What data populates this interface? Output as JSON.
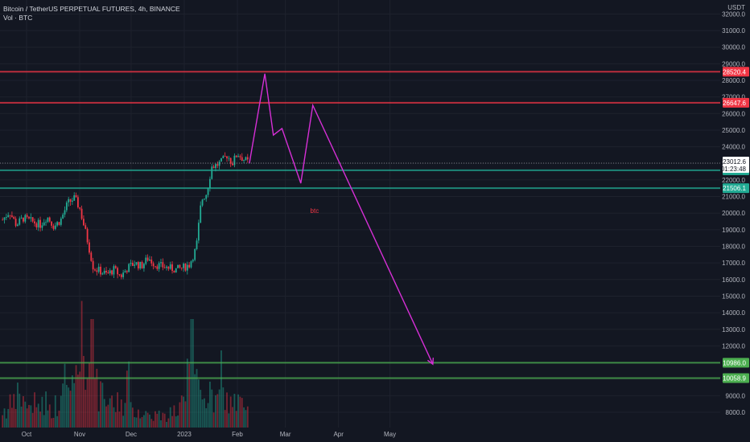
{
  "legend": {
    "symbol": "Bitcoin / TetherUS PERPETUAL FUTURES, 4h, BINANCE",
    "volume": "Vol · BTC"
  },
  "chart_data": {
    "type": "candlestick",
    "title": "Bitcoin / TetherUS PERPETUAL FUTURES, 4h, BINANCE",
    "y_unit": "USDT",
    "ylim": [
      7500,
      32500
    ],
    "y_ticks": [
      8000,
      9000,
      10000,
      11000,
      12000,
      13000,
      14000,
      15000,
      16000,
      17000,
      18000,
      19000,
      20000,
      21000,
      22000,
      23000,
      24000,
      25000,
      26000,
      27000,
      28000,
      29000,
      30000,
      31000,
      32000
    ],
    "x_labels": [
      "Oct",
      "Nov",
      "Dec",
      "2023",
      "Feb",
      "Mar",
      "Apr",
      "May"
    ],
    "x_label_days": [
      0,
      31,
      61,
      92,
      123,
      151,
      182,
      212
    ],
    "xlim_days": [
      -14,
      282
    ],
    "last_candle_day": 130,
    "price_path": [
      [
        -14,
        19600
      ],
      [
        -10,
        20100
      ],
      [
        -6,
        19300
      ],
      [
        -2,
        19700
      ],
      [
        3,
        19500
      ],
      [
        8,
        19300
      ],
      [
        12,
        19800
      ],
      [
        16,
        19200
      ],
      [
        20,
        19600
      ],
      [
        24,
        20600
      ],
      [
        28,
        20900
      ],
      [
        31,
        20300
      ],
      [
        35,
        18600
      ],
      [
        39,
        16700
      ],
      [
        43,
        16500
      ],
      [
        47,
        16300
      ],
      [
        51,
        16600
      ],
      [
        55,
        16200
      ],
      [
        59,
        16700
      ],
      [
        63,
        17000
      ],
      [
        67,
        16800
      ],
      [
        71,
        17300
      ],
      [
        75,
        16900
      ],
      [
        79,
        16800
      ],
      [
        83,
        16700
      ],
      [
        87,
        16600
      ],
      [
        91,
        16700
      ],
      [
        95,
        16900
      ],
      [
        99,
        17900
      ],
      [
        102,
        20800
      ],
      [
        105,
        21200
      ],
      [
        108,
        22800
      ],
      [
        111,
        22900
      ],
      [
        114,
        23100
      ],
      [
        117,
        23500
      ],
      [
        120,
        23000
      ],
      [
        123,
        23600
      ],
      [
        126,
        23300
      ],
      [
        130,
        23010
      ]
    ],
    "volume_note": "Volume bars at bottom, spike around early November",
    "volume_relative": [
      0.2,
      0.25,
      0.35,
      0.3,
      0.2,
      0.25,
      0.3,
      0.2,
      0.25,
      0.35,
      0.4,
      0.6,
      1.0,
      0.7,
      0.45,
      0.35,
      0.3,
      0.25,
      0.3,
      0.25,
      0.2,
      0.2,
      0.15,
      0.15,
      0.15,
      0.12,
      0.15,
      0.2,
      0.3,
      0.55,
      0.5,
      0.45,
      0.35,
      0.3,
      0.35,
      0.3,
      0.3,
      0.25,
      0.2
    ],
    "horizontal_levels": [
      {
        "value": 28520.4,
        "label": "28520.4",
        "color": "#f23645"
      },
      {
        "value": 26647.6,
        "label": "26647.6",
        "color": "#f23645"
      },
      {
        "value": 22579.6,
        "label": "22579.6",
        "color": "#22ab94"
      },
      {
        "value": 21506.1,
        "label": "21506.1",
        "color": "#22ab94"
      },
      {
        "value": 10986.0,
        "label": "10986.0",
        "color": "#4caf50"
      },
      {
        "value": 10058.9,
        "label": "10058.9",
        "color": "#4caf50"
      }
    ],
    "current_price": {
      "value": 23012.6,
      "label": "23012.6",
      "countdown": "01:23:48"
    },
    "projection_path": [
      [
        130,
        23000
      ],
      [
        139,
        28400
      ],
      [
        144,
        24700
      ],
      [
        149,
        25100
      ],
      [
        160,
        21800
      ],
      [
        167,
        26500
      ],
      [
        237,
        10900
      ]
    ],
    "annotation": {
      "text": "btc",
      "day": 168,
      "value": 20000,
      "color": "#f23645"
    },
    "colors": {
      "background": "#131722",
      "up": "#22ab94",
      "down": "#f23645",
      "projection": "#d62fd6",
      "axis_text": "#b2b5be"
    }
  }
}
